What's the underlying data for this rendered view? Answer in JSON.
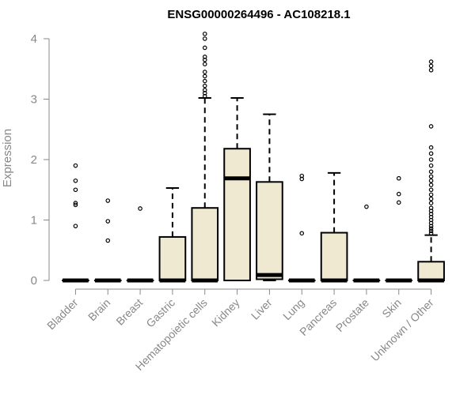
{
  "chart_data": {
    "type": "box",
    "title": "ENSG00000264496 - AC108218.1",
    "ylabel": "Expression",
    "xlabel": "",
    "ylim": [
      0,
      4.1
    ],
    "yticks": [
      0,
      1,
      2,
      3,
      4
    ],
    "ytick_labels": [
      "0",
      "1",
      "2",
      "3",
      "4"
    ],
    "box_fill": "#efe9d2",
    "categories": [
      "Bladder",
      "Brain",
      "Breast",
      "Gastric",
      "Hematopoietic cells",
      "Kidney",
      "Liver",
      "Lung",
      "Pancreas",
      "Prostate",
      "Skin",
      "Unknown / Other"
    ],
    "boxes": [
      {
        "q1": 0,
        "median": 0,
        "q3": 0,
        "whisker_low": 0,
        "whisker_high": 0,
        "outliers": [
          0.9,
          1.25,
          1.28,
          1.5,
          1.65,
          1.9
        ]
      },
      {
        "q1": 0,
        "median": 0,
        "q3": 0,
        "whisker_low": 0,
        "whisker_high": 0,
        "outliers": [
          0.66,
          0.98,
          1.32
        ]
      },
      {
        "q1": 0,
        "median": 0,
        "q3": 0,
        "whisker_low": 0,
        "whisker_high": 0,
        "outliers": [
          1.19
        ]
      },
      {
        "q1": 0,
        "median": 0,
        "q3": 0.72,
        "whisker_low": 0,
        "whisker_high": 1.53,
        "outliers": []
      },
      {
        "q1": 0,
        "median": 0,
        "q3": 1.2,
        "whisker_low": 0,
        "whisker_high": 3.02,
        "outliers": [
          3.05,
          3.1,
          3.15,
          3.22,
          3.3,
          3.38,
          3.45,
          3.58,
          3.65,
          3.7,
          3.85,
          4.0,
          4.08
        ]
      },
      {
        "q1": 0,
        "median": 1.69,
        "q3": 2.18,
        "whisker_low": 0,
        "whisker_high": 3.02,
        "outliers": []
      },
      {
        "q1": 0.02,
        "median": 0.09,
        "q3": 1.63,
        "whisker_low": 0,
        "whisker_high": 2.75,
        "outliers": []
      },
      {
        "q1": 0,
        "median": 0,
        "q3": 0,
        "whisker_low": 0,
        "whisker_high": 0,
        "outliers": [
          0.78,
          1.68,
          1.73
        ]
      },
      {
        "q1": 0,
        "median": 0,
        "q3": 0.79,
        "whisker_low": 0,
        "whisker_high": 1.78,
        "outliers": []
      },
      {
        "q1": 0,
        "median": 0,
        "q3": 0,
        "whisker_low": 0,
        "whisker_high": 0,
        "outliers": [
          1.22
        ]
      },
      {
        "q1": 0,
        "median": 0,
        "q3": 0,
        "whisker_low": 0,
        "whisker_high": 0,
        "outliers": [
          1.29,
          1.43,
          1.69
        ]
      },
      {
        "q1": 0,
        "median": 0,
        "q3": 0.31,
        "whisker_low": 0,
        "whisker_high": 0.75,
        "outliers": [
          0.78,
          0.82,
          0.86,
          0.9,
          0.95,
          1.0,
          1.05,
          1.1,
          1.15,
          1.2,
          1.28,
          1.35,
          1.42,
          1.5,
          1.58,
          1.65,
          1.72,
          1.8,
          1.9,
          2.0,
          2.1,
          2.2,
          2.55,
          3.48,
          3.55,
          3.62
        ]
      }
    ]
  }
}
